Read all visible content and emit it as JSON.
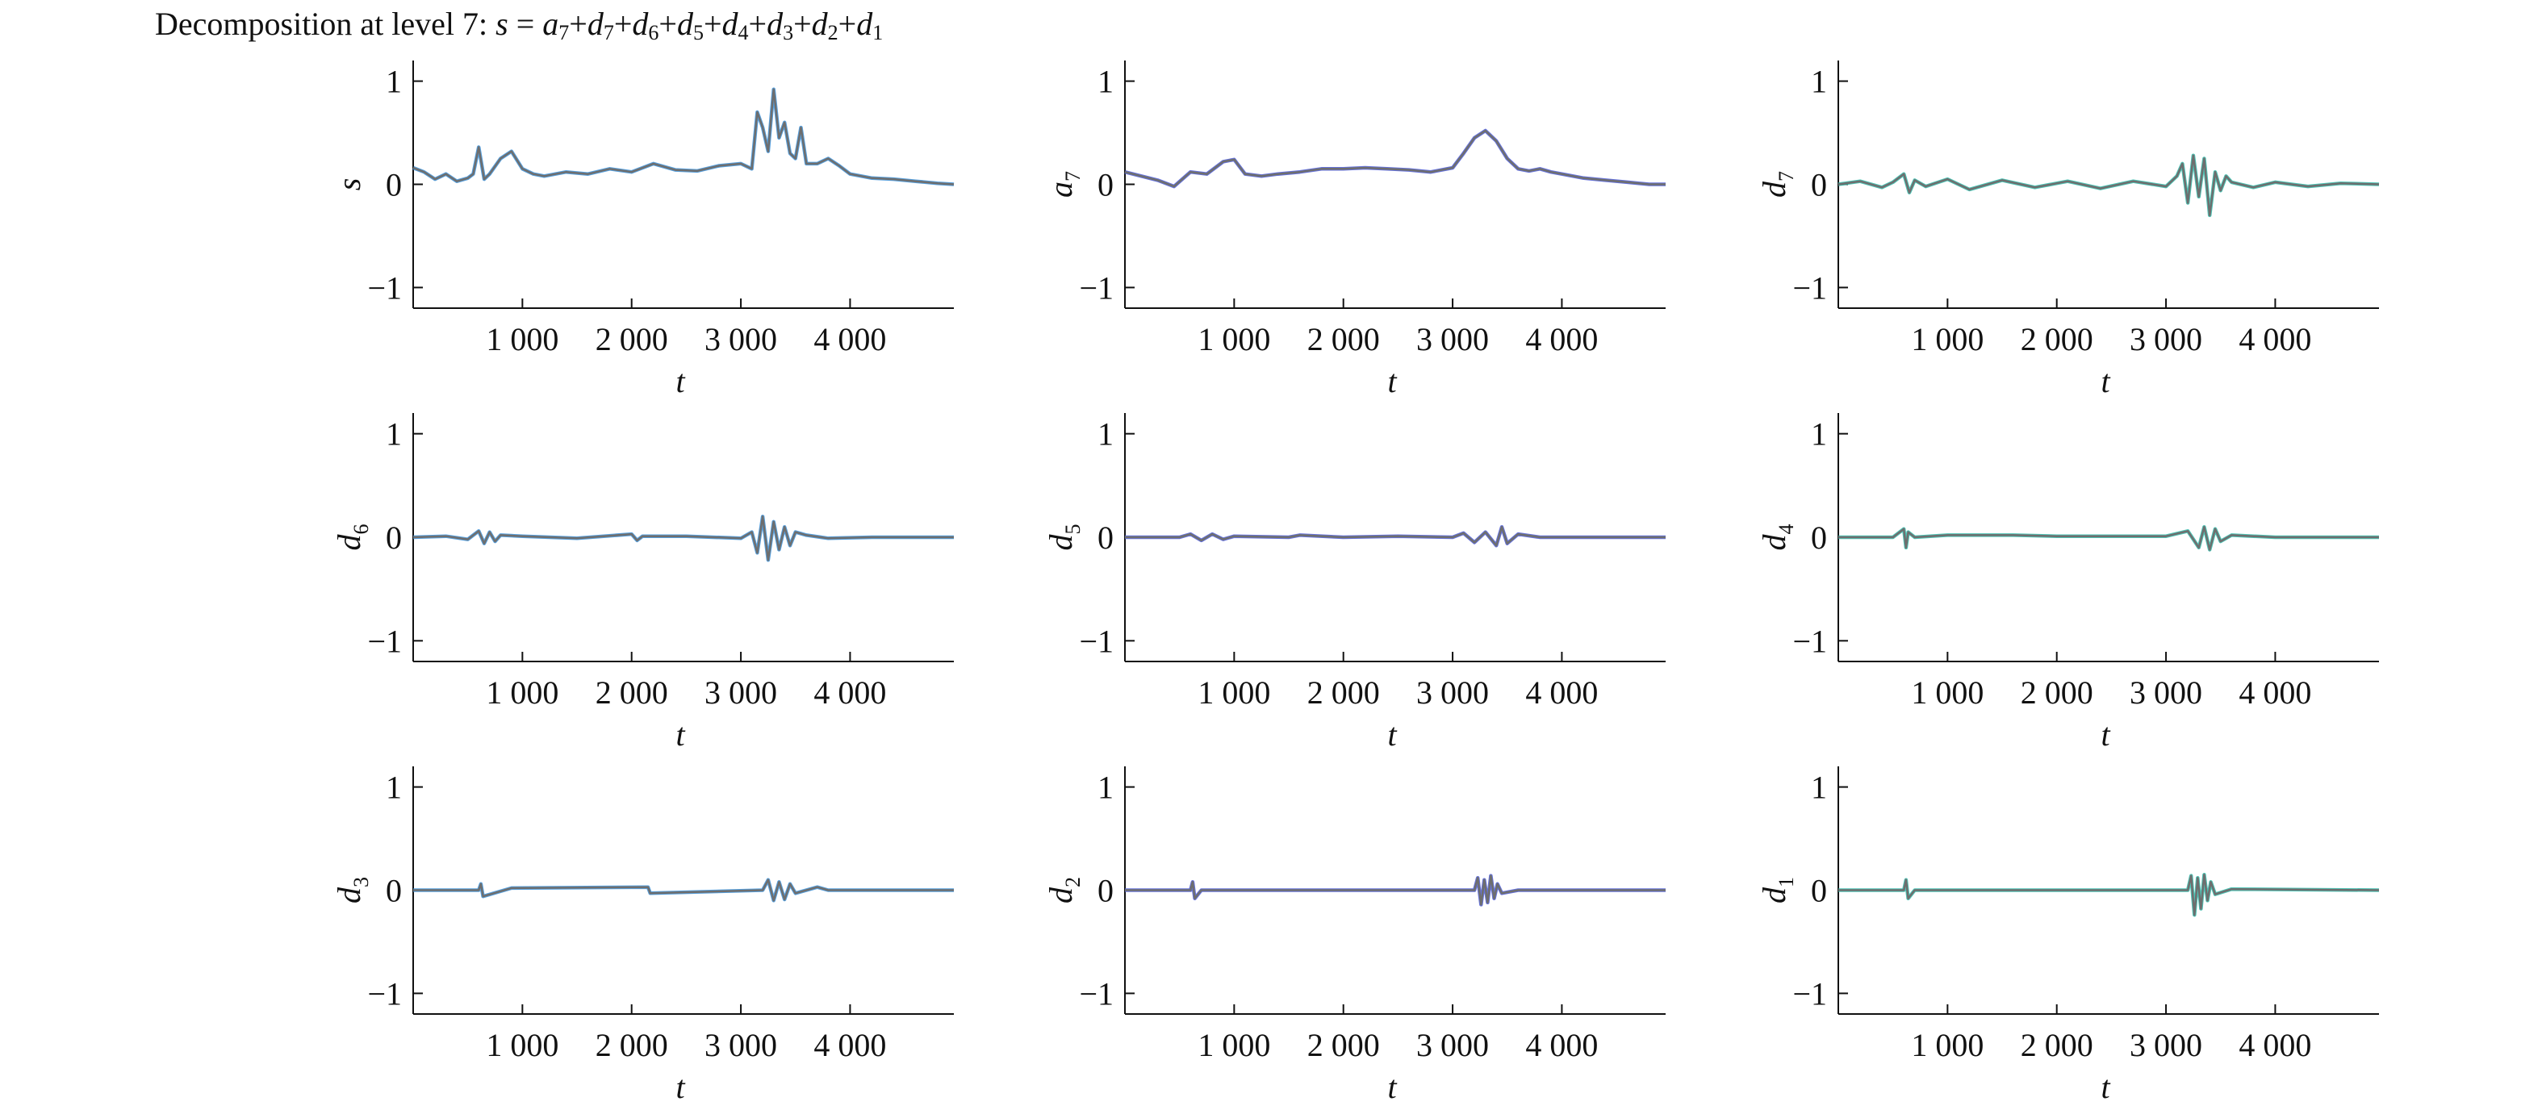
{
  "figure": {
    "title": {
      "prefix": "Decomposition at level 7: ",
      "formula": [
        {
          "text": "s",
          "sub": ""
        },
        {
          "text": " = ",
          "sub": "",
          "plain": true
        },
        {
          "text": "a",
          "sub": "7"
        },
        {
          "text": "+",
          "sub": "",
          "plain": true
        },
        {
          "text": "d",
          "sub": "7"
        },
        {
          "text": "+",
          "sub": "",
          "plain": true
        },
        {
          "text": "d",
          "sub": "6"
        },
        {
          "text": "+",
          "sub": "",
          "plain": true
        },
        {
          "text": "d",
          "sub": "5"
        },
        {
          "text": "+",
          "sub": "",
          "plain": true
        },
        {
          "text": "d",
          "sub": "4"
        },
        {
          "text": "+",
          "sub": "",
          "plain": true
        },
        {
          "text": "d",
          "sub": "3"
        },
        {
          "text": "+",
          "sub": "",
          "plain": true
        },
        {
          "text": "d",
          "sub": "2"
        },
        {
          "text": "+",
          "sub": "",
          "plain": true
        },
        {
          "text": "d",
          "sub": "1"
        }
      ]
    },
    "colors": {
      "axis": "#111111",
      "line_main": "#6e6e6e",
      "line_overlay": "#3a8fd8",
      "line_overlay2": "#4b5bd6",
      "line_overlay3": "#2fb8a8"
    }
  },
  "chart_data": [
    {
      "type": "line",
      "ylabel": "s",
      "xlabel": "t",
      "xlim": [
        0,
        4950
      ],
      "ylim": [
        -1.2,
        1.2
      ],
      "xticks": [
        1000,
        2000,
        3000,
        4000
      ],
      "xticklabels": [
        "1 000",
        "2 000",
        "3 000",
        "4 000"
      ],
      "yticks": [
        -1,
        0,
        1
      ],
      "yticklabels": [
        "−1",
        "0",
        "1"
      ],
      "grid": false,
      "x": [
        0,
        100,
        200,
        300,
        400,
        500,
        550,
        600,
        650,
        700,
        800,
        900,
        1000,
        1100,
        1200,
        1400,
        1600,
        1800,
        2000,
        2200,
        2400,
        2600,
        2800,
        3000,
        3100,
        3150,
        3200,
        3250,
        3300,
        3350,
        3400,
        3450,
        3500,
        3550,
        3600,
        3700,
        3800,
        3900,
        4000,
        4200,
        4400,
        4600,
        4800,
        4950
      ],
      "values": [
        0.16,
        0.12,
        0.05,
        0.1,
        0.03,
        0.06,
        0.1,
        0.36,
        0.05,
        0.1,
        0.25,
        0.32,
        0.15,
        0.1,
        0.08,
        0.12,
        0.1,
        0.15,
        0.12,
        0.2,
        0.14,
        0.13,
        0.18,
        0.2,
        0.15,
        0.7,
        0.55,
        0.32,
        0.92,
        0.45,
        0.6,
        0.3,
        0.25,
        0.55,
        0.2,
        0.2,
        0.25,
        0.18,
        0.1,
        0.06,
        0.05,
        0.03,
        0.01,
        0.0
      ]
    },
    {
      "type": "line",
      "ylabel": "a7",
      "ylabel_base": "a",
      "ylabel_sub": "7",
      "xlabel": "t",
      "xlim": [
        0,
        4950
      ],
      "ylim": [
        -1.2,
        1.2
      ],
      "xticks": [
        1000,
        2000,
        3000,
        4000
      ],
      "xticklabels": [
        "1 000",
        "2 000",
        "3 000",
        "4 000"
      ],
      "yticks": [
        -1,
        0,
        1
      ],
      "yticklabels": [
        "−1",
        "0",
        "1"
      ],
      "grid": false,
      "x": [
        0,
        150,
        300,
        450,
        600,
        750,
        900,
        1000,
        1100,
        1250,
        1400,
        1600,
        1800,
        2000,
        2200,
        2400,
        2600,
        2800,
        3000,
        3100,
        3200,
        3300,
        3400,
        3500,
        3600,
        3700,
        3800,
        3900,
        4000,
        4200,
        4400,
        4600,
        4800,
        4950
      ],
      "values": [
        0.12,
        0.08,
        0.04,
        -0.02,
        0.12,
        0.1,
        0.22,
        0.24,
        0.1,
        0.08,
        0.1,
        0.12,
        0.15,
        0.15,
        0.16,
        0.15,
        0.14,
        0.12,
        0.16,
        0.3,
        0.45,
        0.52,
        0.42,
        0.25,
        0.15,
        0.13,
        0.15,
        0.12,
        0.1,
        0.06,
        0.04,
        0.02,
        0.0,
        0.0
      ]
    },
    {
      "type": "line",
      "ylabel": "d7",
      "ylabel_base": "d",
      "ylabel_sub": "7",
      "xlabel": "t",
      "xlim": [
        0,
        4950
      ],
      "ylim": [
        -1.2,
        1.2
      ],
      "xticks": [
        1000,
        2000,
        3000,
        4000
      ],
      "xticklabels": [
        "1 000",
        "2 000",
        "3 000",
        "4 000"
      ],
      "yticks": [
        -1,
        0,
        1
      ],
      "yticklabels": [
        "−1",
        "0",
        "1"
      ],
      "grid": false,
      "x": [
        0,
        200,
        400,
        500,
        600,
        650,
        700,
        800,
        1000,
        1200,
        1500,
        1800,
        2100,
        2400,
        2700,
        3000,
        3100,
        3150,
        3200,
        3250,
        3300,
        3350,
        3400,
        3450,
        3500,
        3550,
        3600,
        3800,
        4000,
        4300,
        4600,
        4950
      ],
      "values": [
        0.0,
        0.03,
        -0.03,
        0.02,
        0.1,
        -0.08,
        0.04,
        -0.02,
        0.05,
        -0.05,
        0.04,
        -0.03,
        0.03,
        -0.04,
        0.03,
        -0.02,
        0.08,
        0.2,
        -0.18,
        0.28,
        -0.12,
        0.25,
        -0.3,
        0.12,
        -0.06,
        0.08,
        0.02,
        -0.03,
        0.02,
        -0.02,
        0.01,
        0.0
      ]
    },
    {
      "type": "line",
      "ylabel": "d6",
      "ylabel_base": "d",
      "ylabel_sub": "6",
      "xlabel": "t",
      "xlim": [
        0,
        4950
      ],
      "ylim": [
        -1.2,
        1.2
      ],
      "xticks": [
        1000,
        2000,
        3000,
        4000
      ],
      "xticklabels": [
        "1 000",
        "2 000",
        "3 000",
        "4 000"
      ],
      "yticks": [
        -1,
        0,
        1
      ],
      "yticklabels": [
        "−1",
        "0",
        "1"
      ],
      "grid": false,
      "x": [
        0,
        300,
        500,
        600,
        650,
        700,
        750,
        800,
        1000,
        1500,
        2000,
        2050,
        2100,
        2500,
        3000,
        3100,
        3150,
        3200,
        3250,
        3300,
        3350,
        3400,
        3450,
        3500,
        3600,
        3800,
        4200,
        4950
      ],
      "values": [
        0.0,
        0.01,
        -0.02,
        0.06,
        -0.06,
        0.05,
        -0.04,
        0.02,
        0.01,
        -0.01,
        0.03,
        -0.03,
        0.01,
        0.01,
        -0.01,
        0.05,
        -0.15,
        0.2,
        -0.22,
        0.15,
        -0.12,
        0.1,
        -0.08,
        0.05,
        0.02,
        -0.01,
        0.0,
        0.0
      ]
    },
    {
      "type": "line",
      "ylabel": "d5",
      "ylabel_base": "d",
      "ylabel_sub": "5",
      "xlabel": "t",
      "xlim": [
        0,
        4950
      ],
      "ylim": [
        -1.2,
        1.2
      ],
      "xticks": [
        1000,
        2000,
        3000,
        4000
      ],
      "xticklabels": [
        "1 000",
        "2 000",
        "3 000",
        "4 000"
      ],
      "yticks": [
        -1,
        0,
        1
      ],
      "yticklabels": [
        "−1",
        "0",
        "1"
      ],
      "grid": false,
      "x": [
        0,
        500,
        600,
        700,
        800,
        900,
        1000,
        1500,
        1600,
        2000,
        2500,
        3000,
        3100,
        3200,
        3300,
        3400,
        3450,
        3500,
        3600,
        3800,
        4200,
        4950
      ],
      "values": [
        0.0,
        0.0,
        0.03,
        -0.03,
        0.03,
        -0.02,
        0.01,
        0.0,
        0.02,
        0.0,
        0.01,
        0.0,
        0.04,
        -0.05,
        0.05,
        -0.08,
        0.1,
        -0.06,
        0.03,
        0.0,
        0.0,
        0.0
      ]
    },
    {
      "type": "line",
      "ylabel": "d4",
      "ylabel_base": "d",
      "ylabel_sub": "4",
      "xlabel": "t",
      "xlim": [
        0,
        4950
      ],
      "ylim": [
        -1.2,
        1.2
      ],
      "xticks": [
        1000,
        2000,
        3000,
        4000
      ],
      "xticklabels": [
        "1 000",
        "2 000",
        "3 000",
        "4 000"
      ],
      "yticks": [
        -1,
        0,
        1
      ],
      "yticklabels": [
        "−1",
        "0",
        "1"
      ],
      "grid": false,
      "x": [
        0,
        500,
        600,
        620,
        640,
        700,
        1000,
        1600,
        2000,
        3000,
        3200,
        3300,
        3350,
        3400,
        3450,
        3500,
        3600,
        4000,
        4950
      ],
      "values": [
        0.0,
        0.0,
        0.08,
        -0.1,
        0.05,
        0.0,
        0.02,
        0.02,
        0.01,
        0.01,
        0.06,
        -0.1,
        0.1,
        -0.12,
        0.08,
        -0.04,
        0.02,
        0.0,
        0.0
      ]
    },
    {
      "type": "line",
      "ylabel": "d3",
      "ylabel_base": "d",
      "ylabel_sub": "3",
      "xlabel": "t",
      "xlim": [
        0,
        4950
      ],
      "ylim": [
        -1.2,
        1.2
      ],
      "xticks": [
        1000,
        2000,
        3000,
        4000
      ],
      "xticklabels": [
        "1 000",
        "2 000",
        "3 000",
        "4 000"
      ],
      "yticks": [
        -1,
        0,
        1
      ],
      "yticklabels": [
        "−1",
        "0",
        "1"
      ],
      "grid": false,
      "x": [
        0,
        600,
        620,
        640,
        900,
        2150,
        2170,
        3200,
        3250,
        3300,
        3350,
        3400,
        3450,
        3500,
        3700,
        3800,
        4950
      ],
      "values": [
        0.0,
        0.0,
        0.06,
        -0.06,
        0.02,
        0.03,
        -0.03,
        0.0,
        0.1,
        -0.1,
        0.08,
        -0.09,
        0.06,
        -0.03,
        0.03,
        0.0,
        0.0
      ]
    },
    {
      "type": "line",
      "ylabel": "d2",
      "ylabel_base": "d",
      "ylabel_sub": "2",
      "xlabel": "t",
      "xlim": [
        0,
        4950
      ],
      "ylim": [
        -1.2,
        1.2
      ],
      "xticks": [
        1000,
        2000,
        3000,
        4000
      ],
      "xticklabels": [
        "1 000",
        "2 000",
        "3 000",
        "4 000"
      ],
      "yticks": [
        -1,
        0,
        1
      ],
      "yticklabels": [
        "−1",
        "0",
        "1"
      ],
      "grid": false,
      "x": [
        0,
        600,
        620,
        640,
        700,
        3200,
        3230,
        3260,
        3290,
        3320,
        3350,
        3380,
        3410,
        3450,
        3600,
        4950
      ],
      "values": [
        0.0,
        0.0,
        0.08,
        -0.08,
        0.0,
        0.0,
        0.12,
        -0.14,
        0.1,
        -0.12,
        0.14,
        -0.08,
        0.06,
        -0.03,
        0.0,
        0.0
      ]
    },
    {
      "type": "line",
      "ylabel": "d1",
      "ylabel_base": "d",
      "ylabel_sub": "1",
      "xlabel": "t",
      "xlim": [
        0,
        4950
      ],
      "ylim": [
        -1.2,
        1.2
      ],
      "xticks": [
        1000,
        2000,
        3000,
        4000
      ],
      "xticklabels": [
        "1 000",
        "2 000",
        "3 000",
        "4 000"
      ],
      "yticks": [
        -1,
        0,
        1
      ],
      "yticklabels": [
        "−1",
        "0",
        "1"
      ],
      "grid": false,
      "x": [
        0,
        600,
        620,
        640,
        700,
        3200,
        3230,
        3260,
        3290,
        3320,
        3350,
        3380,
        3410,
        3450,
        3600,
        4950
      ],
      "values": [
        0.0,
        0.0,
        0.1,
        -0.08,
        0.0,
        0.0,
        0.14,
        -0.24,
        0.12,
        -0.18,
        0.15,
        -0.1,
        0.08,
        -0.04,
        0.01,
        0.0
      ]
    }
  ]
}
